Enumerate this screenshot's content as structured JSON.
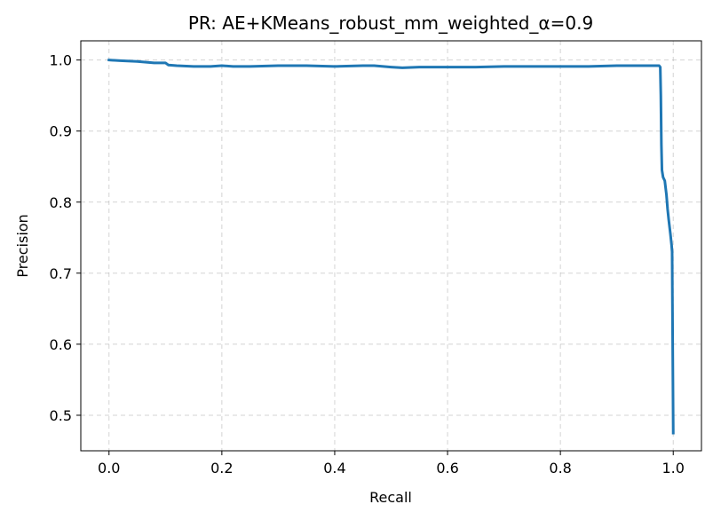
{
  "chart_data": {
    "type": "line",
    "title": "PR: AE+KMeans_robust_mm_weighted_α=0.9",
    "xlabel": "Recall",
    "ylabel": "Precision",
    "xlim": [
      -0.05,
      1.05
    ],
    "ylim": [
      0.45,
      1.027
    ],
    "grid": true,
    "legend": "none",
    "xticks": [
      0.0,
      0.2,
      0.4,
      0.6,
      0.8,
      1.0
    ],
    "xtick_labels": [
      "0.0",
      "0.2",
      "0.4",
      "0.6",
      "0.8",
      "1.0"
    ],
    "yticks": [
      0.5,
      0.6,
      0.7,
      0.8,
      0.9,
      1.0
    ],
    "ytick_labels": [
      "0.5",
      "0.6",
      "0.7",
      "0.8",
      "0.9",
      "1.0"
    ],
    "series": [
      {
        "color": "#1f77b4",
        "x": [
          0.0,
          0.02,
          0.05,
          0.08,
          0.095,
          0.1,
          0.105,
          0.12,
          0.15,
          0.18,
          0.2,
          0.22,
          0.25,
          0.3,
          0.35,
          0.4,
          0.45,
          0.47,
          0.5,
          0.52,
          0.55,
          0.6,
          0.65,
          0.7,
          0.75,
          0.8,
          0.85,
          0.9,
          0.95,
          0.975,
          0.977,
          0.978,
          0.979,
          0.98,
          0.982,
          0.985,
          0.988,
          0.99,
          0.992,
          0.995,
          0.997,
          0.998,
          0.999,
          1.0
        ],
        "y": [
          1.0,
          0.999,
          0.998,
          0.996,
          0.996,
          0.996,
          0.993,
          0.992,
          0.991,
          0.991,
          0.992,
          0.991,
          0.991,
          0.992,
          0.992,
          0.991,
          0.992,
          0.992,
          0.99,
          0.989,
          0.99,
          0.99,
          0.99,
          0.991,
          0.991,
          0.991,
          0.991,
          0.992,
          0.992,
          0.992,
          0.99,
          0.95,
          0.88,
          0.845,
          0.835,
          0.83,
          0.81,
          0.79,
          0.775,
          0.755,
          0.74,
          0.73,
          0.6,
          0.475
        ]
      }
    ]
  }
}
